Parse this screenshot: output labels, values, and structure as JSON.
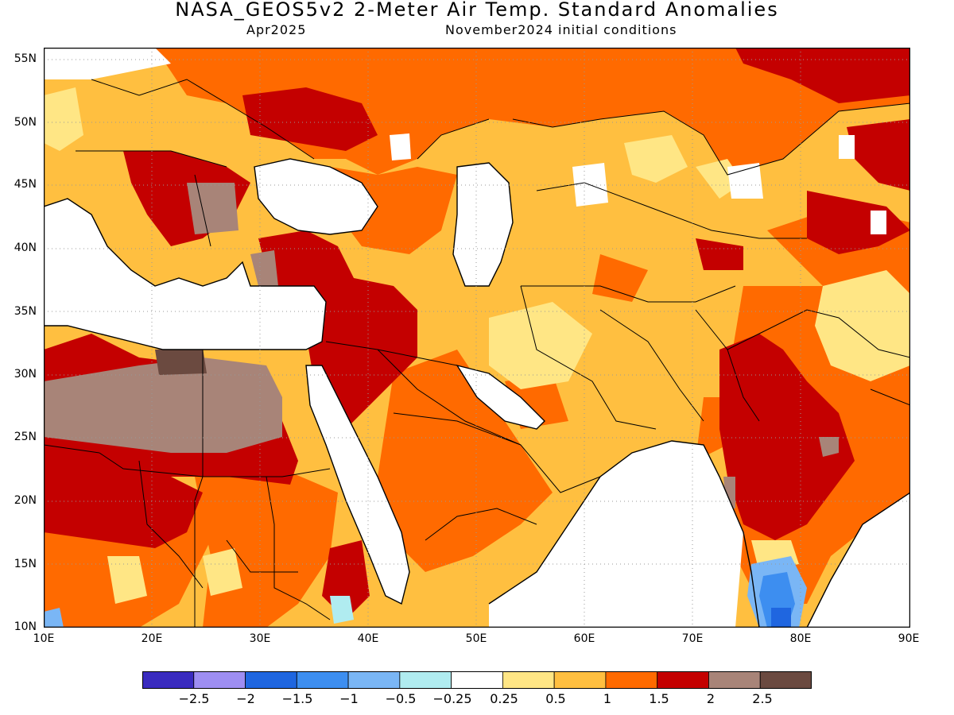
{
  "header": {
    "title": "NASA_GEOS5v2 2-Meter Air Temp. Standard Anomalies",
    "valid_month": "Apr2025",
    "init": "November2024 initial conditions"
  },
  "axes": {
    "lat_labels": [
      "55N",
      "50N",
      "45N",
      "40N",
      "35N",
      "30N",
      "25N",
      "20N",
      "15N",
      "10N"
    ],
    "lon_labels": [
      "10E",
      "20E",
      "30E",
      "40E",
      "50E",
      "60E",
      "70E",
      "80E",
      "90E"
    ]
  },
  "colors": {
    "land_cold3": "#3a2bbf",
    "cold2": "#9e8ef2",
    "cold1": "#1f66e0",
    "cold1b": "#3d8ef0",
    "cold05": "#7ab6f5",
    "cold025": "#b0ecf0",
    "neutral": "#ffffff",
    "warm025": "#ffe685",
    "warm05": "#ffbf40",
    "warm1": "#ff6a00",
    "warm15": "#c40000",
    "warm2": "#a88478",
    "warm25": "#6b4a40"
  },
  "colorbar": {
    "labels": [
      "−2.5",
      "−2",
      "−1.5",
      "−1",
      "−0.5",
      "−0.25",
      "0.25",
      "0.5",
      "1",
      "1.5",
      "2",
      "2.5"
    ],
    "swatches": [
      "#3a2bbf",
      "#9e8ef2",
      "#1f66e0",
      "#3d8ef0",
      "#7ab6f5",
      "#b0ecf0",
      "#ffffff",
      "#ffe685",
      "#ffbf40",
      "#ff6a00",
      "#c40000",
      "#a88478",
      "#6b4a40"
    ]
  }
}
